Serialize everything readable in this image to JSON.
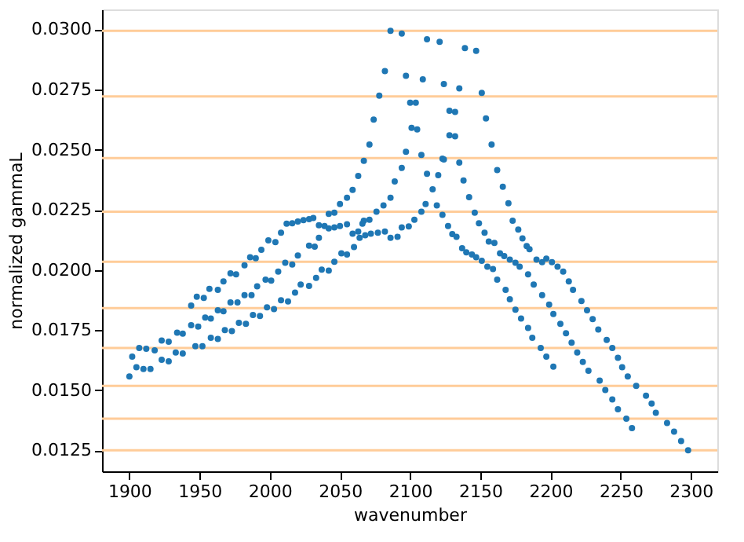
{
  "chart_data": {
    "type": "scatter",
    "xlabel": "wavenumber",
    "ylabel": "normalized gammaL",
    "x": [
      1900,
      1902,
      1907,
      1912,
      1918,
      1923,
      1928,
      1934,
      1938,
      1944,
      1948,
      1953,
      1957,
      1963,
      1967,
      1972,
      1976,
      1982,
      1986,
      1990,
      1994,
      1999,
      2004,
      2008,
      2012,
      2016,
      2020,
      2024,
      2028,
      2031,
      2035,
      2039,
      2042,
      2046,
      2050,
      2055,
      2059,
      2063,
      2067,
      2071,
      2074,
      2078,
      2082,
      2086,
      2094,
      2112,
      2121,
      2139,
      2147,
      2151,
      2154,
      2158,
      2162,
      2166,
      2170,
      2173,
      2177,
      2180,
      2183,
      2185,
      2190,
      2194,
      2197,
      2201,
      2205,
      2209,
      2213,
      2216,
      2222,
      2226,
      2230,
      2234,
      2240,
      2244,
      2248,
      2251,
      2255,
      2261,
      2268,
      2272,
      2275,
      2283,
      2288,
      2293,
      2298,
      1905,
      1910,
      1915,
      1923,
      1928,
      1933,
      1938,
      1944,
      1949,
      1954,
      1958,
      1963,
      1967,
      1972,
      1977,
      1982,
      1987,
      1991,
      1997,
      2001,
      2006,
      2011,
      2016,
      2020,
      2028,
      2032,
      2035,
      2042,
      2046,
      2050,
      2055,
      2059,
      2063,
      2066,
      2067,
      2071,
      2076,
      2081,
      2086,
      2089,
      2094,
      2097,
      2097,
      2109,
      2124,
      2135,
      2100,
      2104,
      2128,
      2132,
      2101,
      2105,
      2128,
      2132,
      2108,
      2123,
      2112,
      2120,
      2124,
      2135,
      2138,
      2142,
      2146,
      2149,
      2153,
      2156,
      2160,
      2164,
      2167,
      2171,
      2175,
      2178,
      2184,
      2188,
      2194,
      2199,
      2202,
      2207,
      2211,
      2215,
      2219,
      2223,
      2227,
      2235,
      2239,
      2244,
      2248,
      2254,
      2258,
      1947,
      1952,
      1958,
      1963,
      1968,
      1973,
      1978,
      1983,
      1988,
      1993,
      1998,
      2003,
      2008,
      2013,
      2018,
      2022,
      2028,
      2033,
      2037,
      2042,
      2046,
      2051,
      2055,
      2060,
      2064,
      2068,
      2072,
      2077,
      2082,
      2086,
      2091,
      2094,
      2099,
      2103,
      2108,
      2111,
      2116,
      2119,
      2123,
      2127,
      2130,
      2133,
      2137,
      2140,
      2144,
      2147,
      2151,
      2155,
      2159,
      2162,
      2168,
      2171,
      2175,
      2179,
      2184,
      2187,
      2193,
      2197,
      2202
    ],
    "values": [
      0.01557,
      0.0164,
      0.01676,
      0.01672,
      0.01666,
      0.01707,
      0.01702,
      0.01739,
      0.01735,
      0.01852,
      0.01889,
      0.01884,
      0.01921,
      0.01917,
      0.01952,
      0.01986,
      0.01982,
      0.02019,
      0.02053,
      0.02049,
      0.02084,
      0.02123,
      0.02116,
      0.02155,
      0.02192,
      0.02194,
      0.02201,
      0.02207,
      0.02211,
      0.02216,
      0.02186,
      0.02183,
      0.02233,
      0.02238,
      0.02274,
      0.023,
      0.02333,
      0.02391,
      0.02454,
      0.02521,
      0.02625,
      0.02725,
      0.02827,
      0.02994,
      0.02983,
      0.02959,
      0.02948,
      0.02922,
      0.02911,
      0.02736,
      0.0263,
      0.02521,
      0.02415,
      0.02346,
      0.02277,
      0.02205,
      0.02168,
      0.02131,
      0.02099,
      0.02086,
      0.02043,
      0.02032,
      0.02047,
      0.02032,
      0.02014,
      0.01993,
      0.01952,
      0.01917,
      0.01871,
      0.01832,
      0.01796,
      0.01752,
      0.01709,
      0.01676,
      0.01635,
      0.01596,
      0.01557,
      0.01518,
      0.01477,
      0.01445,
      0.01406,
      0.01364,
      0.01328,
      0.01289,
      0.0125,
      0.01596,
      0.01588,
      0.01588,
      0.01627,
      0.0162,
      0.01657,
      0.01653,
      0.0177,
      0.01765,
      0.01802,
      0.01798,
      0.01832,
      0.01828,
      0.01865,
      0.01865,
      0.01895,
      0.01895,
      0.01932,
      0.0196,
      0.01956,
      0.01993,
      0.0203,
      0.02023,
      0.0206,
      0.02101,
      0.02097,
      0.02134,
      0.02173,
      0.02177,
      0.02183,
      0.0219,
      0.02151,
      0.0216,
      0.02192,
      0.02205,
      0.02209,
      0.02242,
      0.02268,
      0.023,
      0.02368,
      0.02424,
      0.02491,
      0.02807,
      0.02792,
      0.02773,
      0.02755,
      0.02695,
      0.02695,
      0.02662,
      0.02657,
      0.02591,
      0.02584,
      0.0256,
      0.02556,
      0.02478,
      0.02463,
      0.024,
      0.02394,
      0.02459,
      0.02446,
      0.02372,
      0.02303,
      0.02238,
      0.02194,
      0.02155,
      0.02118,
      0.02112,
      0.02069,
      0.02058,
      0.02043,
      0.0203,
      0.02014,
      0.01982,
      0.01939,
      0.01895,
      0.01856,
      0.01817,
      0.01776,
      0.01737,
      0.01698,
      0.01657,
      0.01618,
      0.01581,
      0.0154,
      0.01501,
      0.01462,
      0.01421,
      0.01382,
      0.01343,
      0.01683,
      0.01683,
      0.01718,
      0.01713,
      0.0175,
      0.01746,
      0.0178,
      0.01776,
      0.01813,
      0.01809,
      0.01845,
      0.01837,
      0.01874,
      0.01869,
      0.01906,
      0.01939,
      0.01934,
      0.01967,
      0.02001,
      0.01997,
      0.02034,
      0.02069,
      0.02064,
      0.02095,
      0.02134,
      0.02144,
      0.02151,
      0.02155,
      0.0216,
      0.02134,
      0.02138,
      0.02177,
      0.02181,
      0.02209,
      0.02242,
      0.02274,
      0.02335,
      0.02268,
      0.02229,
      0.02183,
      0.02149,
      0.02138,
      0.0209,
      0.02073,
      0.02064,
      0.02053,
      0.02038,
      0.02014,
      0.02004,
      0.0196,
      0.01917,
      0.01878,
      0.01835,
      0.01798,
      0.01759,
      0.01718,
      0.01676,
      0.0164,
      0.01598
    ],
    "color": "#1f77b4",
    "marker": "circle",
    "xlim": [
      1880.5,
      2318.8
    ],
    "xticks": [
      1900,
      1950,
      2000,
      2050,
      2100,
      2150,
      2200,
      2250,
      2300
    ],
    "ylim": [
      0.01163,
      0.03083
    ],
    "yticks": [
      {
        "value": 0.0125,
        "label": "0.0125"
      },
      {
        "value": 0.015,
        "label": "0.0150"
      },
      {
        "value": 0.0175,
        "label": "0.0175"
      },
      {
        "value": 0.02,
        "label": "0.0200"
      },
      {
        "value": 0.0225,
        "label": "0.0225"
      },
      {
        "value": 0.025,
        "label": "0.0250"
      },
      {
        "value": 0.0275,
        "label": "0.0275"
      },
      {
        "value": 0.03,
        "label": "0.0300"
      }
    ],
    "grid": false,
    "ref_lines": [
      {
        "axis": "y",
        "value": 0.02994,
        "color": "#ffcc99"
      },
      {
        "axis": "y",
        "value": 0.02721,
        "color": "#ffcc99"
      },
      {
        "axis": "y",
        "value": 0.02465,
        "color": "#ffcc99"
      },
      {
        "axis": "y",
        "value": 0.02242,
        "color": "#ffcc99"
      },
      {
        "axis": "y",
        "value": 0.02034,
        "color": "#ffcc99"
      },
      {
        "axis": "y",
        "value": 0.01841,
        "color": "#ffcc99"
      },
      {
        "axis": "y",
        "value": 0.01676,
        "color": "#ffcc99"
      },
      {
        "axis": "y",
        "value": 0.01518,
        "color": "#ffcc99"
      },
      {
        "axis": "y",
        "value": 0.01382,
        "color": "#ffcc99"
      },
      {
        "axis": "y",
        "value": 0.0125,
        "color": "#ffcc99"
      }
    ]
  }
}
